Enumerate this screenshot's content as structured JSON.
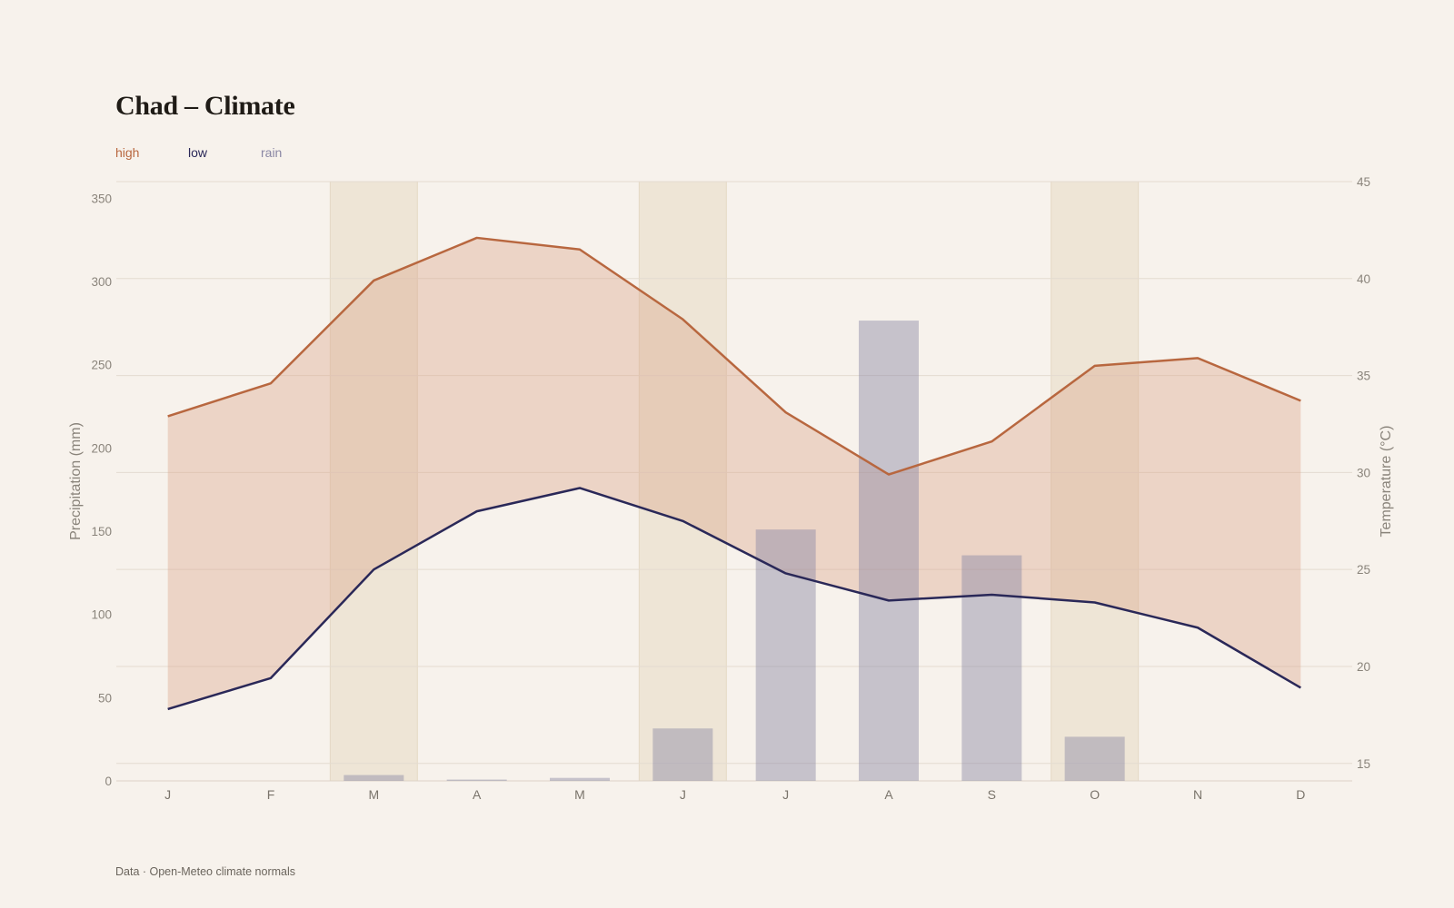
{
  "title": "Chad – Climate",
  "legend": [
    {
      "label": "high",
      "color": "#b8673f"
    },
    {
      "label": "low",
      "color": "#2a2858"
    },
    {
      "label": "rain",
      "color": "#8a87a4"
    }
  ],
  "source": "Data · Open-Meteo climate normals",
  "chart_data": {
    "type": "line",
    "categories": [
      "J",
      "F",
      "M",
      "A",
      "M",
      "J",
      "J",
      "A",
      "S",
      "O",
      "N",
      "D"
    ],
    "series": [
      {
        "name": "high",
        "axis": "right",
        "color": "#b8673f",
        "values": [
          32.9,
          34.6,
          39.9,
          42.1,
          41.5,
          37.9,
          33.1,
          29.9,
          31.6,
          35.5,
          35.9,
          33.7
        ]
      },
      {
        "name": "low",
        "axis": "right",
        "color": "#2a2858",
        "values": [
          17.8,
          19.4,
          25.0,
          28.0,
          29.2,
          27.5,
          24.8,
          23.4,
          23.7,
          23.3,
          22.0,
          18.9
        ]
      },
      {
        "name": "rain",
        "axis": "left",
        "type": "bar",
        "color": "#8a87a4",
        "values": [
          0,
          0,
          3.5,
          0.8,
          1.8,
          31.5,
          151,
          276.5,
          135.5,
          26.5,
          0,
          0
        ]
      }
    ],
    "highlighted_months": [
      2,
      5,
      9
    ],
    "left_axis": {
      "label": "Precipitation (mm)",
      "ticks": [
        0,
        50,
        100,
        150,
        200,
        250,
        300,
        350
      ],
      "range": [
        0,
        360
      ]
    },
    "right_axis": {
      "label": "Temperature (°C)",
      "ticks": [
        15,
        20,
        25,
        30,
        35,
        40,
        45
      ],
      "range": [
        14.1,
        45
      ]
    },
    "grid": true,
    "legend_position": "top-left"
  }
}
